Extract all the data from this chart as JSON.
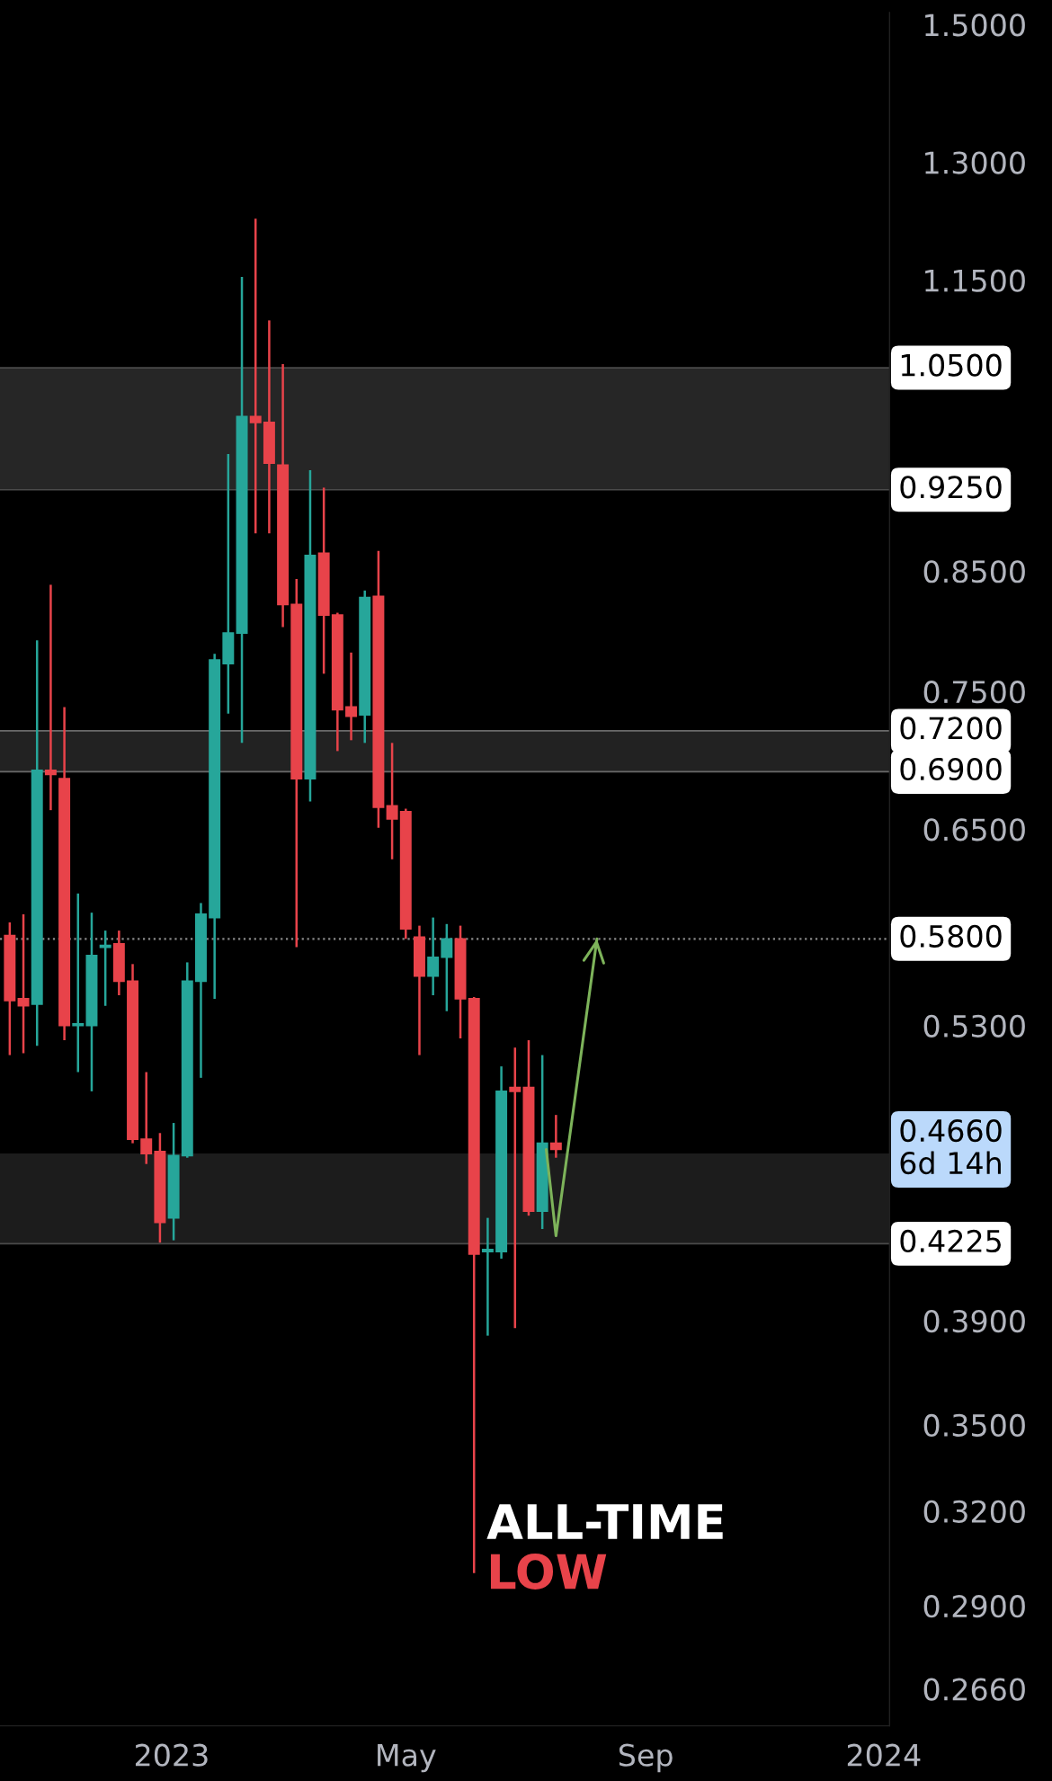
{
  "chart_data": {
    "type": "candlestick",
    "log": "y",
    "x": [
      "2022-10-10",
      "2022-10-17",
      "2022-10-24",
      "2022-10-31",
      "2022-11-07",
      "2022-11-14",
      "2022-11-21",
      "2022-11-28",
      "2022-12-05",
      "2022-12-12",
      "2022-12-19",
      "2022-12-26",
      "2023-01-02",
      "2023-01-09",
      "2023-01-16",
      "2023-01-23",
      "2023-01-30",
      "2023-02-06",
      "2023-02-13",
      "2023-02-20",
      "2023-02-27",
      "2023-03-06",
      "2023-03-13",
      "2023-03-20",
      "2023-03-27",
      "2023-04-03",
      "2023-04-10",
      "2023-04-17",
      "2023-04-24",
      "2023-05-01",
      "2023-05-08",
      "2023-05-15",
      "2023-05-22",
      "2023-05-29",
      "2023-06-05",
      "2023-06-12",
      "2023-06-19",
      "2023-06-26",
      "2023-07-03",
      "2023-07-10",
      "2023-07-17"
    ],
    "ohlc": [
      [
        0.582,
        0.59,
        0.514,
        0.544
      ],
      [
        0.545,
        0.595,
        0.515,
        0.541
      ],
      [
        0.542,
        0.791,
        0.519,
        0.691
      ],
      [
        0.691,
        0.838,
        0.663,
        0.688
      ],
      [
        0.685,
        0.738,
        0.522,
        0.53
      ],
      [
        0.53,
        0.608,
        0.505,
        0.531
      ],
      [
        0.53,
        0.596,
        0.495,
        0.57
      ],
      [
        0.575,
        0.585,
        0.541,
        0.576
      ],
      [
        0.577,
        0.585,
        0.547,
        0.555
      ],
      [
        0.555,
        0.565,
        0.469,
        0.471
      ],
      [
        0.471,
        0.505,
        0.459,
        0.464
      ],
      [
        0.465,
        0.474,
        0.423,
        0.432
      ],
      [
        0.434,
        0.479,
        0.424,
        0.463
      ],
      [
        0.463,
        0.566,
        0.462,
        0.555
      ],
      [
        0.555,
        0.602,
        0.502,
        0.595
      ],
      [
        0.593,
        0.78,
        0.545,
        0.775
      ],
      [
        0.772,
        0.96,
        0.733,
        0.797
      ],
      [
        0.797,
        1.154,
        0.711,
        0.998
      ],
      [
        0.998,
        1.226,
        0.884,
        0.992
      ],
      [
        0.992,
        1.103,
        0.884,
        0.951
      ],
      [
        0.949,
        1.054,
        0.802,
        0.821
      ],
      [
        0.821,
        0.843,
        0.575,
        0.685
      ],
      [
        0.685,
        0.944,
        0.669,
        0.864
      ],
      [
        0.866,
        0.927,
        0.764,
        0.812
      ],
      [
        0.812,
        0.814,
        0.705,
        0.736
      ],
      [
        0.738,
        0.781,
        0.713,
        0.731
      ],
      [
        0.732,
        0.833,
        0.711,
        0.827
      ],
      [
        0.828,
        0.868,
        0.651,
        0.665
      ],
      [
        0.666,
        0.711,
        0.63,
        0.657
      ],
      [
        0.662,
        0.664,
        0.58,
        0.586
      ],
      [
        0.581,
        0.588,
        0.514,
        0.558
      ],
      [
        0.558,
        0.593,
        0.547,
        0.569
      ],
      [
        0.569,
        0.589,
        0.538,
        0.58
      ],
      [
        0.58,
        0.588,
        0.523,
        0.545
      ],
      [
        0.545,
        0.546,
        0.3,
        0.418
      ],
      [
        0.419,
        0.434,
        0.384,
        0.42
      ],
      [
        0.419,
        0.508,
        0.416,
        0.495
      ],
      [
        0.497,
        0.518,
        0.387,
        0.495
      ],
      [
        0.497,
        0.522,
        0.435,
        0.437
      ],
      [
        0.437,
        0.514,
        0.429,
        0.469
      ],
      [
        0.469,
        0.483,
        0.462,
        0.466
      ]
    ],
    "colors": [
      "#e8434a",
      "#e8434a",
      "#26a69a",
      "#e8434a",
      "#e8434a",
      "#26a69a",
      "#26a69a",
      "#26a69a",
      "#e8434a",
      "#e8434a",
      "#e8434a",
      "#e8434a",
      "#26a69a",
      "#26a69a",
      "#26a69a",
      "#26a69a",
      "#26a69a",
      "#26a69a",
      "#e8434a",
      "#e8434a",
      "#e8434a",
      "#e8434a",
      "#26a69a",
      "#e8434a",
      "#e8434a",
      "#e8434a",
      "#26a69a",
      "#e8434a",
      "#e8434a",
      "#e8434a",
      "#e8434a",
      "#26a69a",
      "#26a69a",
      "#e8434a",
      "#e8434a",
      "#26a69a",
      "#26a69a",
      "#e8434a",
      "#e8434a",
      "#26a69a",
      "#e8434a"
    ],
    "series": [
      {
        "type": "line",
        "color": "#7db35a",
        "x": [
          "2023-07-12",
          "2023-07-17",
          "2023-08-07"
        ],
        "values": [
          0.466,
          0.426,
          0.58
        ]
      }
    ],
    "xlim": [
      "2022-10-05",
      "2024-01-04"
    ],
    "xticks": [
      {
        "value": "2023-01-01",
        "label": "2023"
      },
      {
        "value": "2023-05-01",
        "label": "May"
      },
      {
        "value": "2023-09-01",
        "label": "Sep"
      },
      {
        "value": "2024-01-01",
        "label": "2024"
      }
    ],
    "ylim": [
      0.256,
      1.519
    ],
    "yticks": [
      {
        "value": 1.5,
        "label": "1.5000"
      },
      {
        "value": 1.3,
        "label": "1.3000"
      },
      {
        "value": 1.15,
        "label": "1.1500"
      },
      {
        "value": 0.85,
        "label": "0.8500"
      },
      {
        "value": 0.75,
        "label": "0.7500"
      },
      {
        "value": 0.65,
        "label": "0.6500"
      },
      {
        "value": 0.53,
        "label": "0.5300"
      },
      {
        "value": 0.39,
        "label": "0.3900"
      },
      {
        "value": 0.35,
        "label": "0.3500"
      },
      {
        "value": 0.32,
        "label": "0.3200"
      },
      {
        "value": 0.29,
        "label": "0.2900"
      },
      {
        "value": 0.266,
        "label": "0.2660"
      }
    ],
    "bands": [
      {
        "axis": "y",
        "from": 0.925,
        "to": 1.05,
        "color": "#262626"
      },
      {
        "axis": "y",
        "from": 0.69,
        "to": 0.72,
        "color": "#222222"
      },
      {
        "axis": "y",
        "from": 0.4225,
        "to": 0.464,
        "color": "#1c1c1c"
      }
    ],
    "ref_lines": [
      {
        "axis": "y",
        "value": 0.58,
        "label": "0.5800",
        "color": "#8a8a8a",
        "line_style": "dotted"
      },
      {
        "axis": "y",
        "value": 1.05,
        "label": "1.0500",
        "color": "#4a4a4a",
        "line_style": "solid"
      },
      {
        "axis": "y",
        "value": 0.925,
        "label": "0.9250",
        "color": "#4a4a4a",
        "line_style": "solid"
      },
      {
        "axis": "y",
        "value": 0.72,
        "label": "0.7200",
        "color": "#6a6a6a",
        "line_style": "solid"
      },
      {
        "axis": "y",
        "value": 0.69,
        "label": "0.6900",
        "color": "#6a6a6a",
        "line_style": "solid"
      },
      {
        "axis": "y",
        "value": 0.4225,
        "label": "0.4225",
        "color": "#4a4a4a",
        "line_style": "solid"
      }
    ],
    "annotations": [
      "0.4660\n6d 14h",
      {
        "text": "ALL-TIME",
        "x": "2023-06-05",
        "y": 0.3
      },
      {
        "text": "LOW",
        "x": "2023-06-05",
        "y": 0.3
      }
    ]
  }
}
